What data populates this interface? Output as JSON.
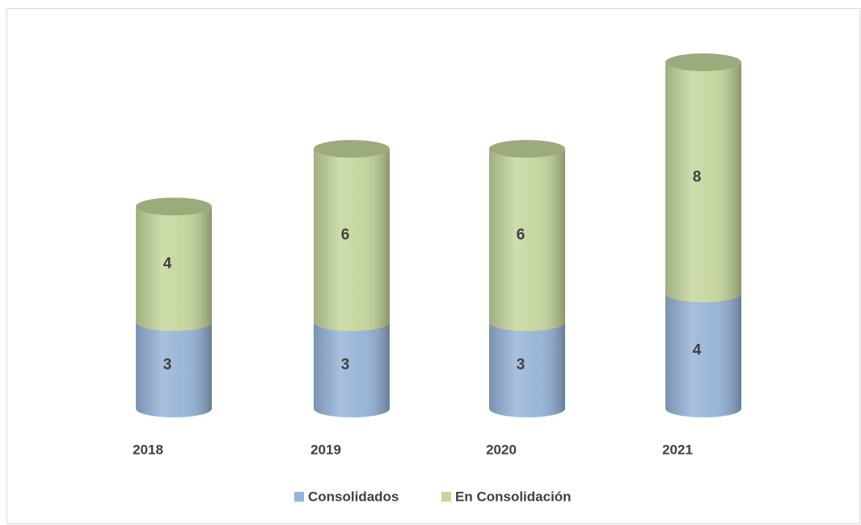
{
  "chart_data": {
    "type": "bar",
    "stacked": true,
    "categories": [
      "2018",
      "2019",
      "2020",
      "2021"
    ],
    "series": [
      {
        "name": "Consolidados",
        "color": "#95b3d7",
        "values": [
          3,
          3,
          3,
          4
        ]
      },
      {
        "name": "En Consolidación",
        "color": "#c3d69b",
        "values": [
          4,
          6,
          6,
          8
        ]
      }
    ]
  }
}
